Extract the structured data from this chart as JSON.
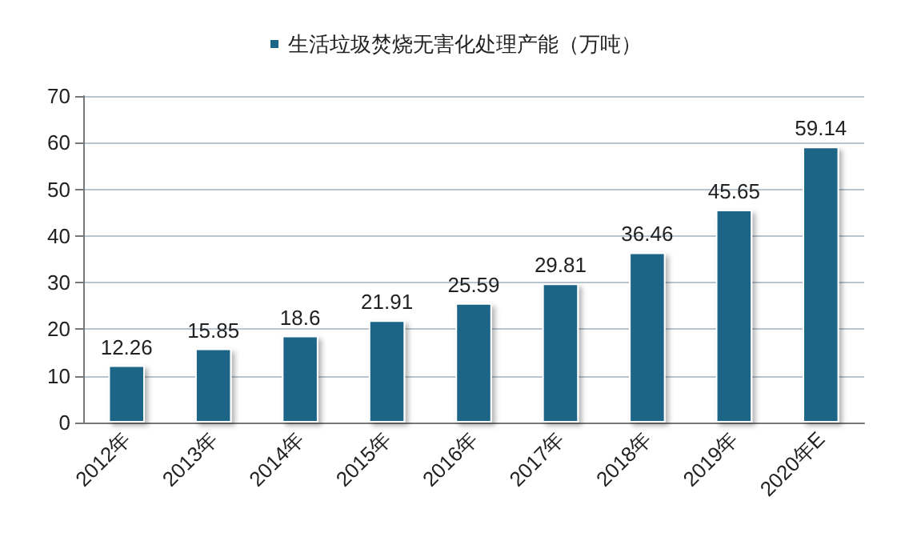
{
  "chart_data": {
    "type": "bar",
    "categories": [
      "2012年",
      "2013年",
      "2014年",
      "2015年",
      "2016年",
      "2017年",
      "2018年",
      "2019年",
      "2020年E"
    ],
    "series": [
      {
        "name": "生活垃圾焚烧无害化处理产能（万吨）",
        "color": "#1b6587",
        "values": [
          12.26,
          15.85,
          18.6,
          21.91,
          25.59,
          29.81,
          36.46,
          45.65,
          59.14
        ]
      }
    ],
    "ylim": [
      0,
      70
    ],
    "yticks": [
      0,
      10,
      20,
      30,
      40,
      50,
      60,
      70
    ],
    "grid": "y",
    "legend": "top",
    "data_labels": true
  }
}
